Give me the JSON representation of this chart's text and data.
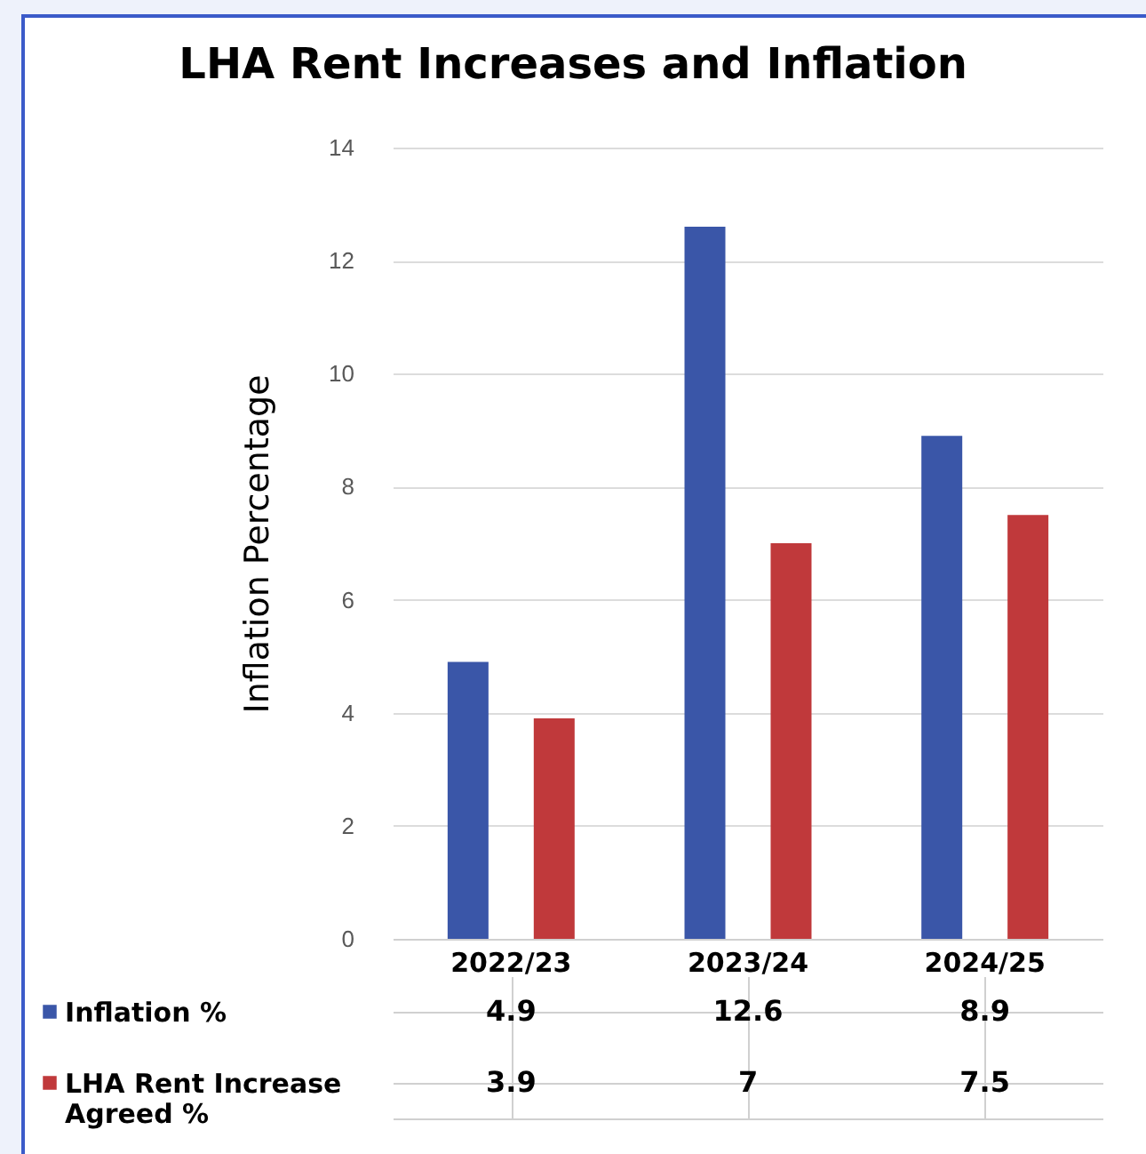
{
  "chart_data": {
    "type": "bar",
    "title": "LHA Rent Increases and Inflation",
    "ylabel": "Inflation Percentage",
    "categories": [
      "2022/23",
      "2023/24",
      "2024/25"
    ],
    "series": [
      {
        "name": "Inflation %",
        "color": "#3a56a8",
        "values": [
          4.9,
          12.6,
          8.9
        ]
      },
      {
        "name": "LHA Rent Increase Agreed %",
        "color": "#c0393b",
        "values": [
          3.9,
          7,
          7.5
        ]
      }
    ],
    "ylim": [
      0,
      14
    ],
    "yticks": [
      0,
      2,
      4,
      6,
      8,
      10,
      12,
      14
    ],
    "grid": "y",
    "legend": "bottom",
    "data_labels": true
  }
}
